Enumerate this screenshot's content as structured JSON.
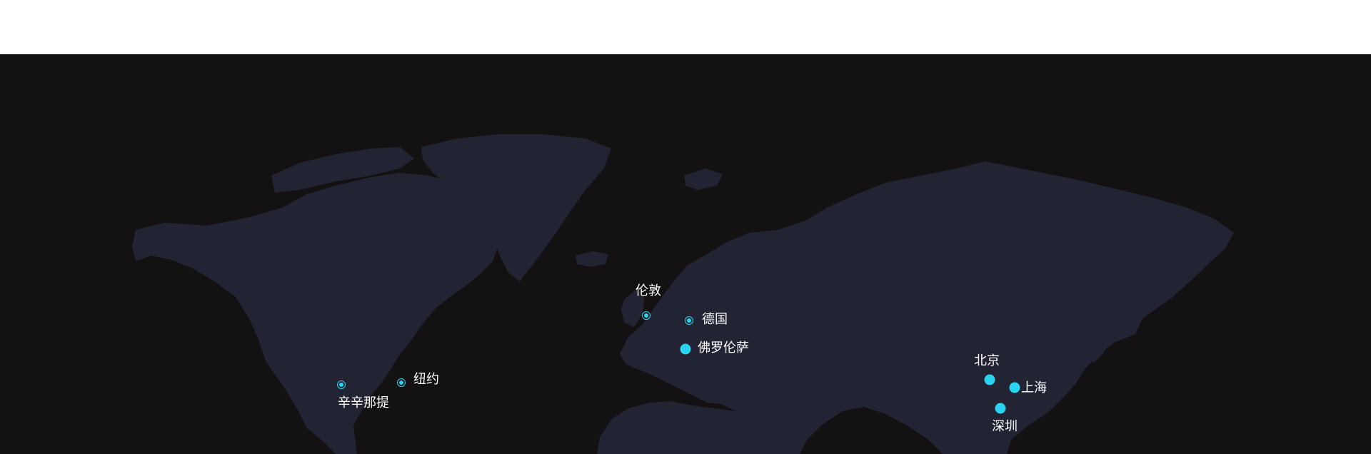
{
  "map": {
    "background": "#141112",
    "land_color": "#222433",
    "marker_color": "#2ad3ef",
    "cities": {
      "cincinnati": {
        "label": "辛辛那提",
        "marker": "ring"
      },
      "new_york": {
        "label": "纽约",
        "marker": "ring"
      },
      "london": {
        "label": "伦敦",
        "marker": "ring"
      },
      "germany": {
        "label": "德国",
        "marker": "ring"
      },
      "florence": {
        "label": "佛罗伦萨",
        "marker": "solid"
      },
      "beijing": {
        "label": "北京",
        "marker": "solid"
      },
      "shanghai": {
        "label": "上海",
        "marker": "solid"
      },
      "shenzhen": {
        "label": "深圳",
        "marker": "solid"
      }
    }
  }
}
